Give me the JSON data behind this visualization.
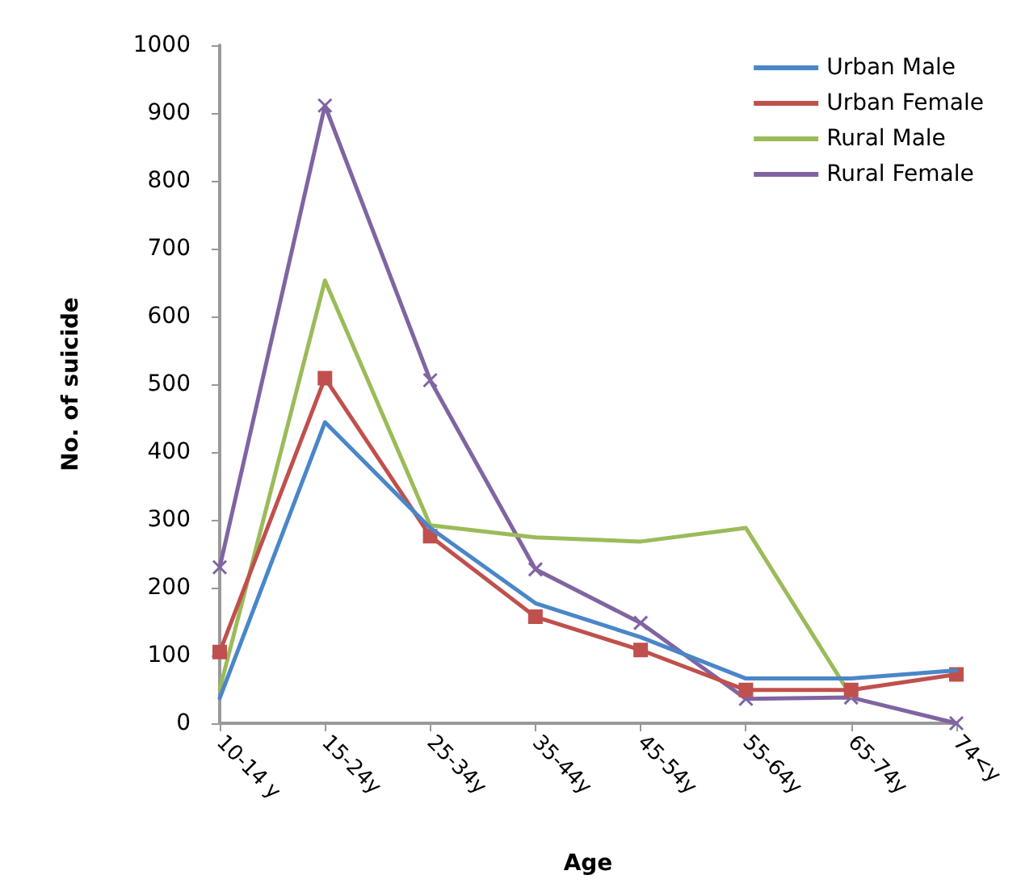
{
  "chart_data": {
    "type": "line",
    "xlabel": "Age",
    "ylabel": "No. of suicide",
    "categories": [
      "10-14 y",
      "15-24y",
      "25-34y",
      "35-44y",
      "45-54y",
      "55-64y",
      "65-74y",
      "74<y"
    ],
    "series": [
      {
        "name": "Urban Male",
        "color": "#4a86c8",
        "marker": "none",
        "values": [
          37,
          444,
          288,
          177,
          127,
          66,
          66,
          78
        ]
      },
      {
        "name": "Urban Female",
        "color": "#c0504d",
        "marker": "square",
        "values": [
          105,
          509,
          276,
          157,
          108,
          49,
          49,
          72
        ]
      },
      {
        "name": "Rural Male",
        "color": "#9bbb59",
        "marker": "none",
        "values": [
          50,
          653,
          292,
          274,
          268,
          288,
          40,
          null
        ]
      },
      {
        "name": "Rural Female",
        "color": "#8064a2",
        "marker": "cross",
        "values": [
          230,
          911,
          506,
          227,
          148,
          36,
          38,
          0
        ]
      }
    ],
    "ylim": [
      0,
      1000
    ],
    "yticks": [
      0,
      100,
      200,
      300,
      400,
      500,
      600,
      700,
      800,
      900,
      1000
    ],
    "grid": false,
    "legend": "top right"
  }
}
